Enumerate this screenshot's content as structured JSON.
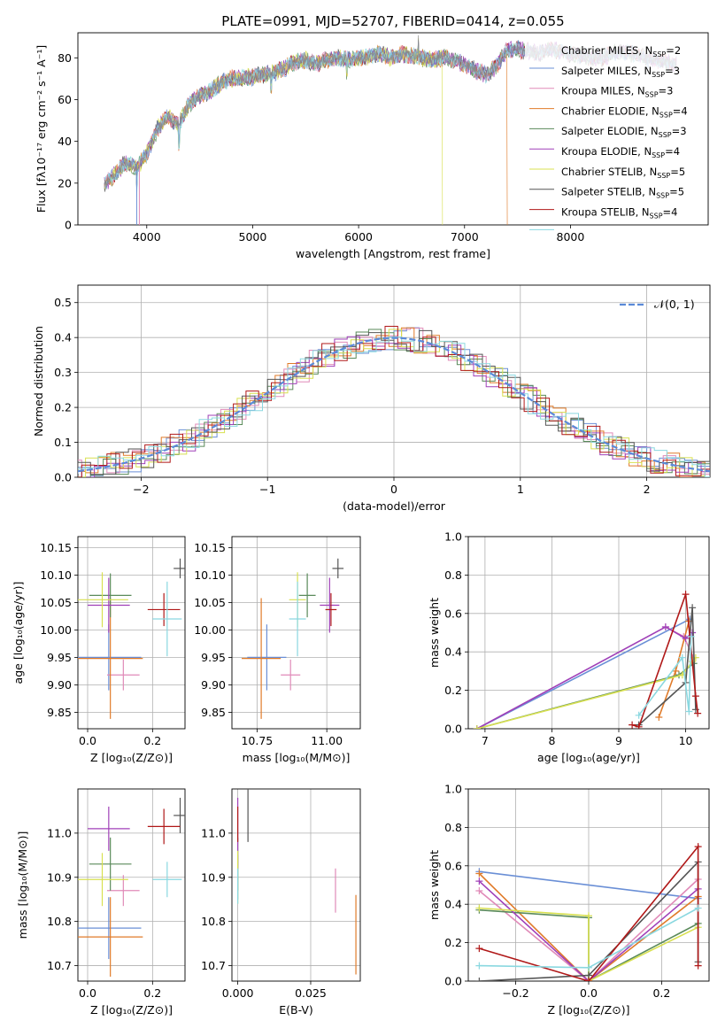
{
  "colors": [
    "#6a8fd6",
    "#e08ab8",
    "#e07b2a",
    "#5a8a5a",
    "#a040b8",
    "#d8e050",
    "#555555",
    "#b01818",
    "#8ad8e0"
  ],
  "title": "PLATE=0991, MJD=52707, FIBERID=0414, z=0.055",
  "chart_data": [
    {
      "id": "spectrum",
      "type": "line",
      "title": "PLATE=0991, MJD=52707, FIBERID=0414, z=0.055",
      "xlabel": "wavelength [Angstrom, rest frame]",
      "ylabel": "Flux [fλ10⁻¹⁷ erg cm⁻² s⁻¹ A⁻¹]",
      "xlim": [
        3350,
        9300
      ],
      "ylim": [
        0,
        92
      ],
      "xticks": [
        "4000",
        "5000",
        "6000",
        "7000",
        "8000"
      ],
      "yticks": [
        "0",
        "20",
        "40",
        "60",
        "80"
      ],
      "legend_position": "right",
      "x": [
        3600,
        3700,
        3800,
        3900,
        4000,
        4100,
        4200,
        4300,
        4400,
        4500,
        4600,
        4700,
        4800,
        4900,
        5000,
        5100,
        5200,
        5300,
        5400,
        5500,
        5600,
        5700,
        5800,
        5900,
        6000,
        6100,
        6200,
        6300,
        6400,
        6500,
        6600,
        6700,
        6800,
        6900,
        7000,
        7100,
        7200,
        7300,
        7400,
        7500,
        7600,
        7700,
        7800,
        7900,
        8000,
        8100,
        8200,
        8300,
        8400,
        8500,
        8600,
        8700,
        8800,
        8900,
        9000
      ],
      "y": [
        20,
        24,
        30,
        27,
        34,
        46,
        52,
        48,
        58,
        62,
        64,
        68,
        70,
        70,
        71,
        72,
        73,
        75,
        78,
        79,
        77,
        79,
        80,
        79,
        80,
        81,
        82,
        80,
        82,
        81,
        80,
        79,
        80,
        79,
        77,
        74,
        72,
        76,
        84,
        84,
        83,
        82,
        84,
        83,
        82,
        81,
        80,
        80,
        82,
        83,
        82,
        80,
        79,
        78,
        77
      ],
      "legend": [
        {
          "label": "Chabrier MILES, N",
          "sub": "SSP",
          "suffix": "=2"
        },
        {
          "label": "Salpeter MILES, N",
          "sub": "SSP",
          "suffix": "=3"
        },
        {
          "label": "Kroupa MILES, N",
          "sub": "SSP",
          "suffix": "=3"
        },
        {
          "label": "Chabrier ELODIE, N",
          "sub": "SSP",
          "suffix": "=4"
        },
        {
          "label": "Salpeter ELODIE, N",
          "sub": "SSP",
          "suffix": "=3"
        },
        {
          "label": "Kroupa ELODIE, N",
          "sub": "SSP",
          "suffix": "=4"
        },
        {
          "label": "Chabrier STELIB, N",
          "sub": "SSP",
          "suffix": "=5"
        },
        {
          "label": "Salpeter STELIB, N",
          "sub": "SSP",
          "suffix": "=5"
        },
        {
          "label": "Kroupa STELIB, N",
          "sub": "SSP",
          "suffix": "=4"
        }
      ]
    },
    {
      "id": "residuals",
      "type": "histogram",
      "xlabel": "(data-model)/error",
      "ylabel": "Normed distribution",
      "xlim": [
        -2.5,
        2.5
      ],
      "ylim": [
        0,
        0.55
      ],
      "xticks": [
        "−2",
        "−1",
        "0",
        "1",
        "2"
      ],
      "yticks": [
        "0.0",
        "0.1",
        "0.2",
        "0.3",
        "0.4",
        "0.5"
      ],
      "legend_label": "𝒩(0, 1)",
      "legend_position": "top-right"
    },
    {
      "id": "age-vs-Z",
      "type": "scatter",
      "xlabel": "Z [log₁₀(Z/Z⊙)]",
      "ylabel": "age  [log₁₀(age/yr)]",
      "xlim": [
        -0.03,
        0.3
      ],
      "ylim": [
        9.82,
        10.17
      ],
      "xticks": [
        "0.0",
        "0.2"
      ],
      "yticks": [
        "9.85",
        "9.90",
        "9.95",
        "10.00",
        "10.05",
        "10.10",
        "10.15"
      ],
      "points": [
        {
          "x": 0.065,
          "y": 9.95,
          "ex": 0.1,
          "ey": 0.06
        },
        {
          "x": 0.11,
          "y": 9.918,
          "ex": 0.05,
          "ey": 0.028
        },
        {
          "x": 0.07,
          "y": 9.948,
          "ex": 0.1,
          "ey": 0.11
        },
        {
          "x": 0.07,
          "y": 10.063,
          "ex": 0.065,
          "ey": 0.04
        },
        {
          "x": 0.065,
          "y": 10.045,
          "ex": 0.065,
          "ey": 0.05
        },
        {
          "x": 0.045,
          "y": 10.055,
          "ex": 0.08,
          "ey": 0.05
        },
        {
          "x": 0.285,
          "y": 10.112,
          "ex": 0.02,
          "ey": 0.018
        },
        {
          "x": 0.235,
          "y": 10.037,
          "ex": 0.05,
          "ey": 0.03
        },
        {
          "x": 0.245,
          "y": 10.02,
          "ex": 0.045,
          "ey": 0.068
        }
      ]
    },
    {
      "id": "age-vs-mass",
      "type": "scatter",
      "xlabel": "mass [log₁₀(M/M⊙)]",
      "xlim": [
        10.66,
        11.12
      ],
      "ylim": [
        9.82,
        10.17
      ],
      "xticks": [
        "10.75",
        "11.00"
      ],
      "yticks": [
        "9.85",
        "9.90",
        "9.95",
        "10.00",
        "10.05",
        "10.10",
        "10.15"
      ],
      "points": [
        {
          "x": 10.785,
          "y": 9.95,
          "ex": 0.07,
          "ey": 0.06
        },
        {
          "x": 10.87,
          "y": 9.918,
          "ex": 0.035,
          "ey": 0.028
        },
        {
          "x": 10.765,
          "y": 9.948,
          "ex": 0.07,
          "ey": 0.11
        },
        {
          "x": 10.93,
          "y": 10.063,
          "ex": 0.03,
          "ey": 0.04
        },
        {
          "x": 11.01,
          "y": 10.045,
          "ex": 0.035,
          "ey": 0.05
        },
        {
          "x": 10.895,
          "y": 10.055,
          "ex": 0.03,
          "ey": 0.05
        },
        {
          "x": 11.04,
          "y": 10.112,
          "ex": 0.02,
          "ey": 0.018
        },
        {
          "x": 11.015,
          "y": 10.037,
          "ex": 0.02,
          "ey": 0.03
        },
        {
          "x": 10.895,
          "y": 10.02,
          "ex": 0.03,
          "ey": 0.068
        }
      ]
    },
    {
      "id": "mass-weight-vs-age",
      "type": "line",
      "xlabel": "age  [log₁₀(age/yr)]",
      "ylabel": "mass weight",
      "xlim": [
        6.75,
        10.35
      ],
      "ylim": [
        0,
        1
      ],
      "xticks": [
        "7",
        "8",
        "9",
        "10"
      ],
      "yticks": [
        "0.0",
        "0.2",
        "0.4",
        "0.6",
        "0.8",
        "1.0"
      ],
      "series": [
        {
          "x": [
            6.88,
            10.06
          ],
          "y": [
            0,
            0.57
          ]
        },
        {
          "x": [
            9.7,
            9.97,
            10.12
          ],
          "y": [
            0.53,
            0.48,
            0.37
          ]
        },
        {
          "x": [
            9.6,
            9.85,
            10.05
          ],
          "y": [
            0.06,
            0.3,
            0.56
          ]
        },
        {
          "x": [
            6.88,
            9.9,
            10.12
          ],
          "y": [
            0,
            0.28,
            0.34
          ]
        },
        {
          "x": [
            6.88,
            9.7,
            10.0,
            10.1
          ],
          "y": [
            0,
            0.53,
            0.47,
            0.5
          ]
        },
        {
          "x": [
            6.88,
            9.95,
            10.1,
            10.15
          ],
          "y": [
            0,
            0.28,
            0.35,
            0.37
          ]
        },
        {
          "x": [
            9.3,
            10.0,
            10.1,
            10.15
          ],
          "y": [
            0.02,
            0.24,
            0.63,
            0.1
          ]
        },
        {
          "x": [
            9.2,
            9.3,
            10.0,
            10.15,
            10.18
          ],
          "y": [
            0.02,
            0.01,
            0.7,
            0.17,
            0.08
          ]
        },
        {
          "x": [
            9.3,
            9.95,
            10.05,
            10.08
          ],
          "y": [
            0.07,
            0.37,
            0.09,
            0.48
          ]
        }
      ]
    },
    {
      "id": "mass-vs-Z",
      "type": "scatter",
      "xlabel": "Z [log₁₀(Z/Z⊙)]",
      "ylabel": "mass [log₁₀(M/M⊙)]",
      "xlim": [
        -0.03,
        0.3
      ],
      "ylim": [
        10.665,
        11.1
      ],
      "xticks": [
        "0.0",
        "0.2"
      ],
      "yticks": [
        "10.7",
        "10.8",
        "10.9",
        "11.0"
      ],
      "points": [
        {
          "x": 0.065,
          "y": 10.785,
          "ex": 0.1,
          "ey": 0.07
        },
        {
          "x": 0.11,
          "y": 10.87,
          "ex": 0.05,
          "ey": 0.035
        },
        {
          "x": 0.07,
          "y": 10.765,
          "ex": 0.1,
          "ey": 0.09
        },
        {
          "x": 0.07,
          "y": 10.93,
          "ex": 0.065,
          "ey": 0.06
        },
        {
          "x": 0.065,
          "y": 11.01,
          "ex": 0.065,
          "ey": 0.05
        },
        {
          "x": 0.045,
          "y": 10.895,
          "ex": 0.08,
          "ey": 0.06
        },
        {
          "x": 0.285,
          "y": 11.04,
          "ex": 0.02,
          "ey": 0.04
        },
        {
          "x": 0.235,
          "y": 11.015,
          "ex": 0.05,
          "ey": 0.04
        },
        {
          "x": 0.245,
          "y": 10.895,
          "ex": 0.045,
          "ey": 0.04
        }
      ]
    },
    {
      "id": "mass-vs-EBV",
      "type": "scatter",
      "xlabel": "E(B-V)",
      "xlim": [
        -0.002,
        0.042
      ],
      "ylim": [
        10.665,
        11.1
      ],
      "xticks": [
        "0.000",
        "0.025"
      ],
      "yticks": [
        "10.7",
        "10.8",
        "10.9",
        "11.0"
      ],
      "points": [
        {
          "x": 0.0,
          "y": 10.9,
          "ex": 0,
          "ey": 0.05
        },
        {
          "x": 0.0335,
          "y": 10.87,
          "ex": 0,
          "ey": 0.05
        },
        {
          "x": 0.0405,
          "y": 10.77,
          "ex": 0,
          "ey": 0.09
        },
        {
          "x": 0.0,
          "y": 10.93,
          "ex": 0,
          "ey": 0.06
        },
        {
          "x": 0.0,
          "y": 11.0,
          "ex": 0,
          "ey": 0.08
        },
        {
          "x": 0.0,
          "y": 10.9,
          "ex": 0,
          "ey": 0.06
        },
        {
          "x": 0.0035,
          "y": 11.04,
          "ex": 0,
          "ey": 0.06
        },
        {
          "x": 0.0,
          "y": 11.02,
          "ex": 0,
          "ey": 0.04
        },
        {
          "x": 0.0,
          "y": 10.88,
          "ex": 0,
          "ey": 0.04
        }
      ]
    },
    {
      "id": "mass-weight-vs-Z",
      "type": "line",
      "xlabel": "Z [log₁₀(Z/Z⊙)]",
      "ylabel": "mass weight",
      "xlim": [
        -0.33,
        0.33
      ],
      "ylim": [
        0,
        1
      ],
      "xticks": [
        "−0.2",
        "0.0",
        "0.2"
      ],
      "yticks": [
        "0.0",
        "0.2",
        "0.4",
        "0.6",
        "0.8",
        "1.0"
      ],
      "series": [
        {
          "x": [
            -0.3,
            0.3
          ],
          "y": [
            0.57,
            0.43
          ]
        },
        {
          "x": [
            -0.3,
            0.0,
            0.3
          ],
          "y": [
            0.47,
            0.0,
            0.53
          ]
        },
        {
          "x": [
            -0.3,
            0.0,
            0.3
          ],
          "y": [
            0.56,
            0.0,
            0.44
          ]
        },
        {
          "x": [
            -0.3,
            0.0,
            0.0,
            0.3
          ],
          "y": [
            0.37,
            0.33,
            0.0,
            0.3
          ]
        },
        {
          "x": [
            -0.3,
            0.0,
            0.3
          ],
          "y": [
            0.52,
            0.0,
            0.48
          ]
        },
        {
          "x": [
            -0.3,
            0.0,
            0.0,
            0.3
          ],
          "y": [
            0.38,
            0.34,
            0.0,
            0.28
          ]
        },
        {
          "x": [
            -0.3,
            0.0,
            0.3,
            0.3
          ],
          "y": [
            0.0,
            0.03,
            0.62,
            0.1
          ]
        },
        {
          "x": [
            -0.3,
            0.0,
            0.3,
            0.3
          ],
          "y": [
            0.17,
            0.0,
            0.7,
            0.08
          ]
        },
        {
          "x": [
            -0.3,
            0.0,
            0.3
          ],
          "y": [
            0.08,
            0.07,
            0.38
          ]
        }
      ]
    }
  ]
}
